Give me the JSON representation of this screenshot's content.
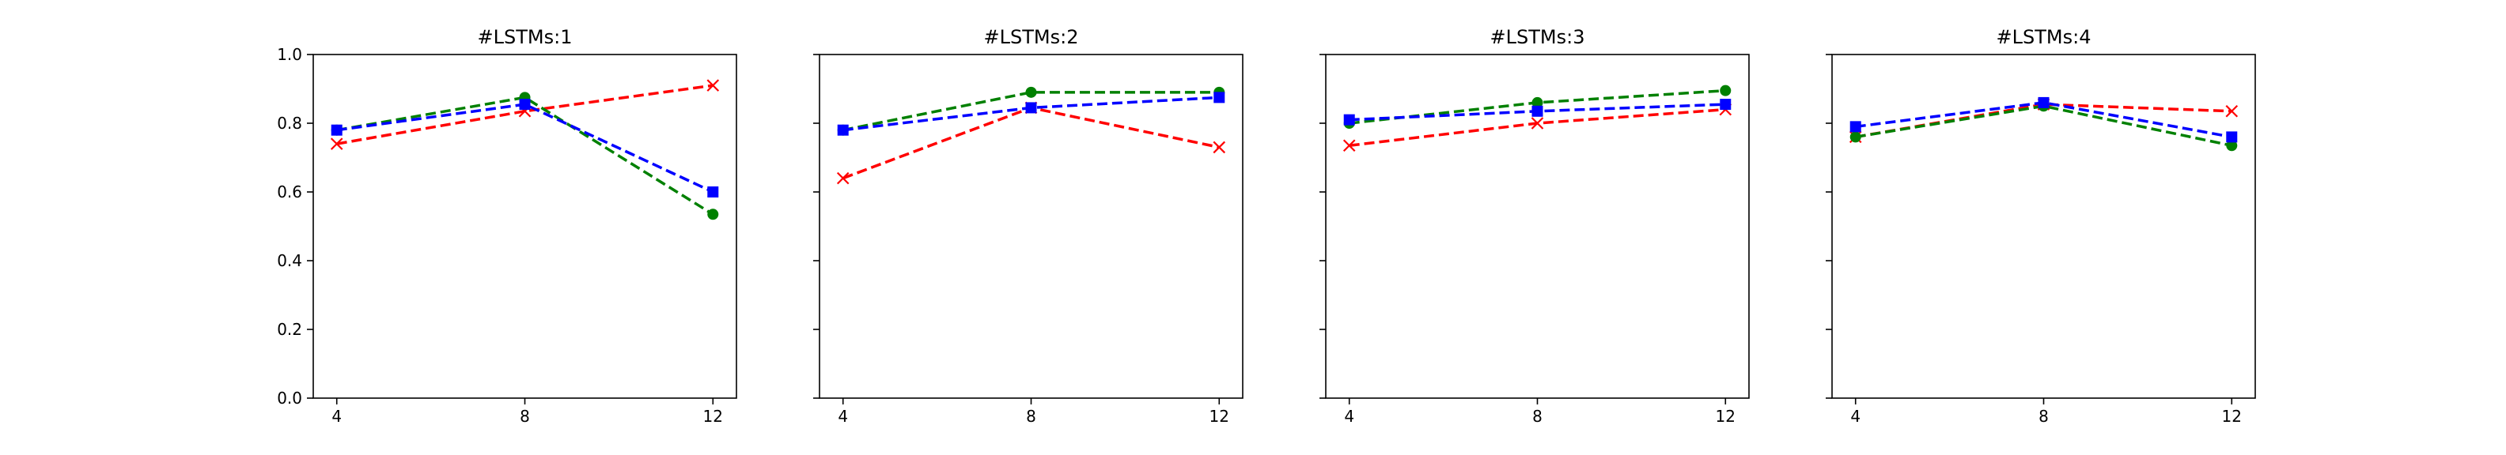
{
  "chart_data": [
    {
      "type": "line",
      "title": "#LSTMs:1",
      "xlabel": "",
      "ylabel": "",
      "x": [
        4,
        8,
        12
      ],
      "x_ticks": [
        "4",
        "8",
        "12"
      ],
      "y_ticks": [
        "0.0",
        "0.2",
        "0.4",
        "0.6",
        "0.8",
        "1.0"
      ],
      "ylim": [
        0,
        1
      ],
      "grid": false,
      "series": [
        {
          "color": "#ff0000",
          "marker": "x",
          "values": [
            0.74,
            0.835,
            0.91
          ]
        },
        {
          "color": "#008000",
          "marker": "circle",
          "values": [
            0.78,
            0.875,
            0.535
          ]
        },
        {
          "color": "#0000ff",
          "marker": "square",
          "values": [
            0.78,
            0.855,
            0.6
          ]
        }
      ]
    },
    {
      "type": "line",
      "title": "#LSTMs:2",
      "xlabel": "",
      "ylabel": "",
      "x": [
        4,
        8,
        12
      ],
      "x_ticks": [
        "4",
        "8",
        "12"
      ],
      "y_ticks": [],
      "ylim": [
        0,
        1
      ],
      "grid": false,
      "series": [
        {
          "color": "#ff0000",
          "marker": "x",
          "values": [
            0.64,
            0.845,
            0.73
          ]
        },
        {
          "color": "#008000",
          "marker": "circle",
          "values": [
            0.78,
            0.89,
            0.89
          ]
        },
        {
          "color": "#0000ff",
          "marker": "square",
          "values": [
            0.78,
            0.845,
            0.875
          ]
        }
      ]
    },
    {
      "type": "line",
      "title": "#LSTMs:3",
      "xlabel": "",
      "ylabel": "",
      "x": [
        4,
        8,
        12
      ],
      "x_ticks": [
        "4",
        "8",
        "12"
      ],
      "y_ticks": [],
      "ylim": [
        0,
        1
      ],
      "grid": false,
      "series": [
        {
          "color": "#ff0000",
          "marker": "x",
          "values": [
            0.735,
            0.8,
            0.84
          ]
        },
        {
          "color": "#008000",
          "marker": "circle",
          "values": [
            0.8,
            0.86,
            0.895
          ]
        },
        {
          "color": "#0000ff",
          "marker": "square",
          "values": [
            0.81,
            0.835,
            0.855
          ]
        }
      ]
    },
    {
      "type": "line",
      "title": "#LSTMs:4",
      "xlabel": "",
      "ylabel": "",
      "x": [
        4,
        8,
        12
      ],
      "x_ticks": [
        "4",
        "8",
        "12"
      ],
      "y_ticks": [],
      "ylim": [
        0,
        1
      ],
      "grid": false,
      "series": [
        {
          "color": "#ff0000",
          "marker": "x",
          "values": [
            0.76,
            0.855,
            0.835
          ]
        },
        {
          "color": "#008000",
          "marker": "circle",
          "values": [
            0.76,
            0.85,
            0.735
          ]
        },
        {
          "color": "#0000ff",
          "marker": "square",
          "values": [
            0.79,
            0.86,
            0.76
          ]
        }
      ]
    }
  ]
}
